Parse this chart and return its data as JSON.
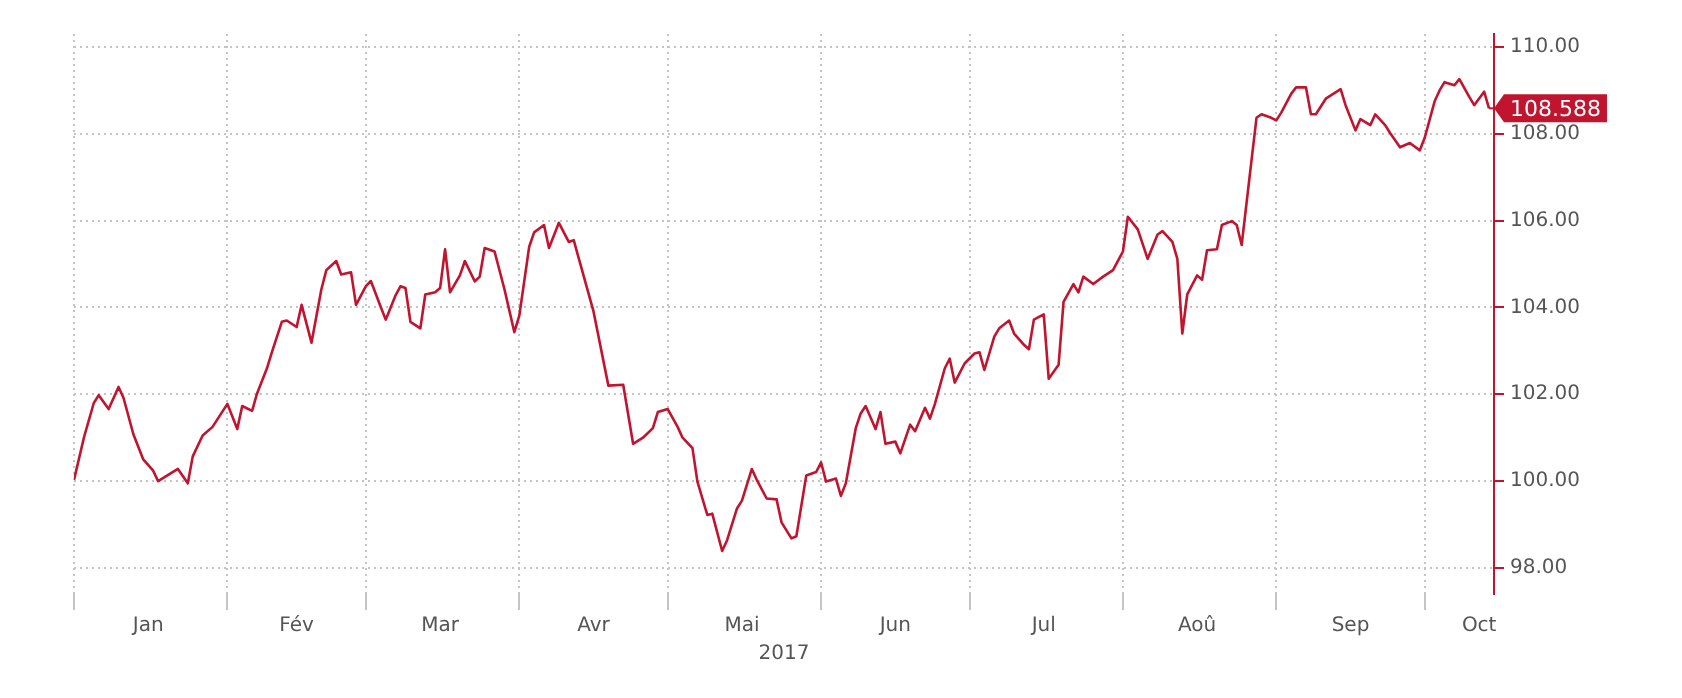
{
  "chart_data": {
    "type": "line",
    "color": "#c0142f",
    "grid": true,
    "xlabel": "2017",
    "x": [
      "2017-01-01",
      "2017-01-03",
      "2017-01-05",
      "2017-01-06",
      "2017-01-08",
      "2017-01-10",
      "2017-01-11",
      "2017-01-13",
      "2017-01-15",
      "2017-01-17",
      "2017-01-18",
      "2017-01-22",
      "2017-01-24",
      "2017-01-25",
      "2017-01-27",
      "2017-01-29",
      "2017-02-01",
      "2017-02-03",
      "2017-02-04",
      "2017-02-06",
      "2017-02-07",
      "2017-02-09",
      "2017-02-10",
      "2017-02-12",
      "2017-02-13",
      "2017-02-15",
      "2017-02-16",
      "2017-02-18",
      "2017-02-20",
      "2017-02-21",
      "2017-02-23",
      "2017-02-24",
      "2017-02-26",
      "2017-02-27",
      "2017-03-01",
      "2017-03-02",
      "2017-03-04",
      "2017-03-05",
      "2017-03-07",
      "2017-03-08",
      "2017-03-09",
      "2017-03-10",
      "2017-03-12",
      "2017-03-13",
      "2017-03-15",
      "2017-03-16",
      "2017-03-17",
      "2017-03-18",
      "2017-03-20",
      "2017-03-21",
      "2017-03-23",
      "2017-03-24",
      "2017-03-25",
      "2017-03-27",
      "2017-03-29",
      "2017-03-31",
      "2017-04-01",
      "2017-04-03",
      "2017-04-04",
      "2017-04-06",
      "2017-04-07",
      "2017-04-09",
      "2017-04-11",
      "2017-04-12",
      "2017-04-16",
      "2017-04-19",
      "2017-04-22",
      "2017-04-24",
      "2017-04-26",
      "2017-04-28",
      "2017-04-29",
      "2017-05-01",
      "2017-05-03",
      "2017-05-04",
      "2017-05-06",
      "2017-05-07",
      "2017-05-09",
      "2017-05-10",
      "2017-05-12",
      "2017-05-13",
      "2017-05-15",
      "2017-05-16",
      "2017-05-18",
      "2017-05-19",
      "2017-05-21",
      "2017-05-23",
      "2017-05-24",
      "2017-05-26",
      "2017-05-27",
      "2017-05-29",
      "2017-05-31",
      "2017-06-01",
      "2017-06-02",
      "2017-06-04",
      "2017-06-05",
      "2017-06-06",
      "2017-06-08",
      "2017-06-09",
      "2017-06-10",
      "2017-06-12",
      "2017-06-13",
      "2017-06-14",
      "2017-06-16",
      "2017-06-17",
      "2017-06-19",
      "2017-06-20",
      "2017-06-22",
      "2017-06-23",
      "2017-06-24",
      "2017-06-26",
      "2017-06-27",
      "2017-06-28",
      "2017-06-30",
      "2017-07-02",
      "2017-07-03",
      "2017-07-04",
      "2017-07-06",
      "2017-07-07",
      "2017-07-09",
      "2017-07-10",
      "2017-07-12",
      "2017-07-13",
      "2017-07-14",
      "2017-07-16",
      "2017-07-17",
      "2017-07-19",
      "2017-07-20",
      "2017-07-22",
      "2017-07-23",
      "2017-07-24",
      "2017-07-26",
      "2017-07-28",
      "2017-07-30",
      "2017-08-01",
      "2017-08-02",
      "2017-08-04",
      "2017-08-06",
      "2017-08-08",
      "2017-08-09",
      "2017-08-11",
      "2017-08-12",
      "2017-08-13",
      "2017-08-14",
      "2017-08-16",
      "2017-08-17",
      "2017-08-18",
      "2017-08-20",
      "2017-08-21",
      "2017-08-23",
      "2017-08-24",
      "2017-08-25",
      "2017-08-27",
      "2017-08-28",
      "2017-08-29",
      "2017-08-31",
      "2017-09-01",
      "2017-09-02",
      "2017-09-04",
      "2017-09-05",
      "2017-09-07",
      "2017-09-08",
      "2017-09-09",
      "2017-09-11",
      "2017-09-14",
      "2017-09-15",
      "2017-09-17",
      "2017-09-18",
      "2017-09-20",
      "2017-09-21",
      "2017-09-23",
      "2017-09-24",
      "2017-09-26",
      "2017-09-28",
      "2017-09-30",
      "2017-10-01",
      "2017-10-03",
      "2017-10-04",
      "2017-10-05",
      "2017-10-07",
      "2017-10-08",
      "2017-10-10",
      "2017-10-11",
      "2017-10-13",
      "2017-10-14"
    ],
    "values": [
      100.03,
      101.0,
      101.8,
      101.98,
      101.66,
      102.17,
      101.92,
      101.08,
      100.5,
      100.24,
      100.0,
      100.28,
      99.95,
      100.57,
      101.05,
      101.25,
      101.78,
      101.2,
      101.73,
      101.62,
      102.02,
      102.6,
      102.97,
      103.67,
      103.7,
      103.55,
      104.06,
      103.19,
      104.42,
      104.86,
      105.07,
      104.76,
      104.81,
      104.06,
      104.49,
      104.61,
      104.01,
      103.72,
      104.28,
      104.49,
      104.45,
      103.67,
      103.52,
      104.3,
      104.35,
      104.45,
      105.34,
      104.35,
      104.74,
      105.07,
      104.6,
      104.71,
      105.37,
      105.29,
      104.42,
      103.43,
      103.81,
      105.4,
      105.73,
      105.9,
      105.37,
      105.95,
      105.51,
      105.55,
      103.91,
      102.2,
      102.22,
      100.86,
      101.0,
      101.22,
      101.59,
      101.66,
      101.25,
      101.0,
      100.76,
      99.99,
      99.22,
      99.25,
      98.39,
      98.64,
      99.37,
      99.55,
      100.28,
      100.03,
      99.6,
      99.58,
      99.05,
      98.68,
      98.73,
      100.13,
      100.21,
      100.43,
      99.99,
      100.06,
      99.66,
      99.95,
      101.22,
      101.56,
      101.73,
      101.2,
      101.59,
      100.86,
      100.91,
      100.64,
      101.3,
      101.15,
      101.69,
      101.44,
      101.78,
      102.6,
      102.82,
      102.27,
      102.71,
      102.94,
      102.97,
      102.56,
      103.33,
      103.52,
      103.7,
      103.4,
      103.14,
      103.04,
      103.72,
      103.84,
      102.36,
      102.68,
      104.13,
      104.54,
      104.35,
      104.71,
      104.54,
      104.71,
      104.86,
      105.29,
      106.09,
      105.8,
      105.12,
      105.68,
      105.76,
      105.51,
      105.12,
      103.4,
      104.3,
      104.74,
      104.64,
      105.32,
      105.34,
      105.9,
      105.99,
      105.9,
      105.44,
      107.4,
      108.37,
      108.45,
      108.37,
      108.31,
      108.49,
      108.92,
      109.07,
      109.07,
      108.45,
      108.45,
      108.81,
      109.03,
      108.66,
      108.08,
      108.34,
      108.2,
      108.45,
      108.2,
      108.02,
      107.69,
      107.79,
      107.62,
      107.91,
      108.75,
      109.0,
      109.19,
      109.12,
      109.26,
      108.85,
      108.66,
      108.97,
      108.588
    ],
    "xlim": [
      "2017-01-01",
      "2017-10-15"
    ],
    "xticks": [
      {
        "value": "2017-01-01",
        "label": null
      },
      {
        "value": "2017-01-16",
        "label": "Jan"
      },
      {
        "value": "2017-02-01",
        "label": null
      },
      {
        "value": "2017-02-15",
        "label": "Fév"
      },
      {
        "value": "2017-03-01",
        "label": null
      },
      {
        "value": "2017-03-16",
        "label": "Mar"
      },
      {
        "value": "2017-04-01",
        "label": null
      },
      {
        "value": "2017-04-16",
        "label": "Avr"
      },
      {
        "value": "2017-05-01",
        "label": null
      },
      {
        "value": "2017-05-16",
        "label": "Mai"
      },
      {
        "value": "2017-06-01",
        "label": null
      },
      {
        "value": "2017-06-16",
        "label": "Jun"
      },
      {
        "value": "2017-07-01",
        "label": null
      },
      {
        "value": "2017-07-16",
        "label": "Jul"
      },
      {
        "value": "2017-08-01",
        "label": null
      },
      {
        "value": "2017-08-16",
        "label": "Aoû"
      },
      {
        "value": "2017-09-01",
        "label": null
      },
      {
        "value": "2017-09-16",
        "label": "Sep"
      },
      {
        "value": "2017-10-01",
        "label": null
      },
      {
        "value": "2017-10-12",
        "label": "Oct"
      }
    ],
    "ylim": [
      97.4,
      110.3
    ],
    "yticks": [
      {
        "value": 98,
        "label": "98.00"
      },
      {
        "value": 100,
        "label": "100.00"
      },
      {
        "value": 102,
        "label": "102.00"
      },
      {
        "value": 104,
        "label": "104.00"
      },
      {
        "value": 106,
        "label": "106.00"
      },
      {
        "value": 108,
        "label": "108.00"
      },
      {
        "value": 110,
        "label": "110.00"
      }
    ],
    "annotations": [
      {
        "text": "108.588",
        "x": "2017-10-14",
        "y": 108.588
      }
    ]
  }
}
